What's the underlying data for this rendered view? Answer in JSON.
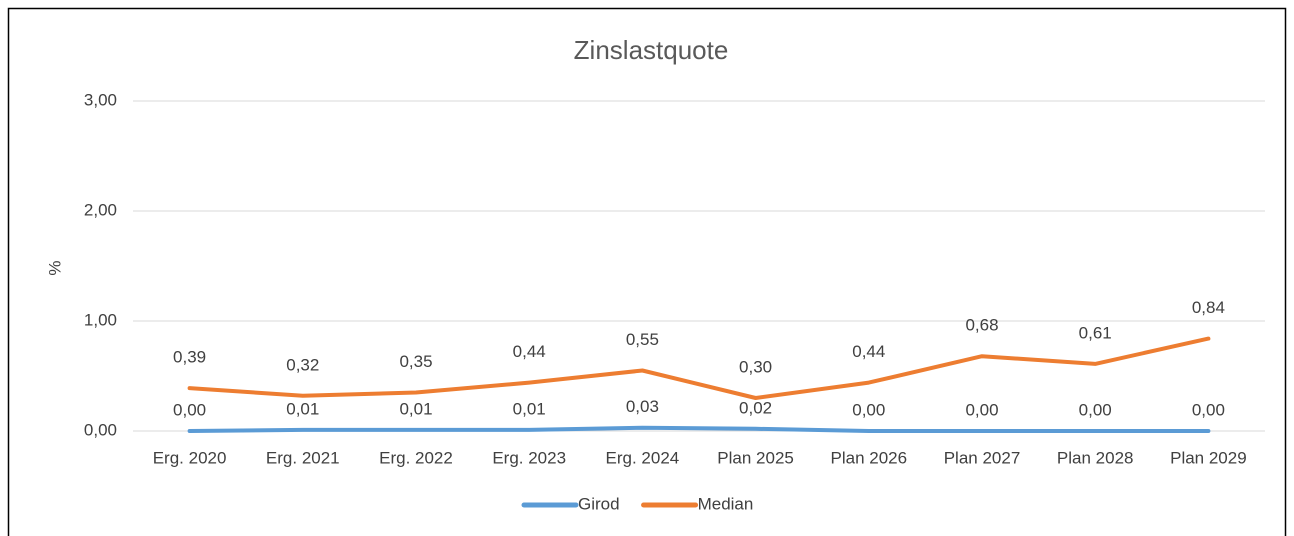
{
  "chart_data": {
    "type": "line",
    "title": "Zinslastquote",
    "y_label": "%",
    "categories": [
      "Erg. 2020",
      "Erg. 2021",
      "Erg. 2022",
      "Erg. 2023",
      "Erg. 2024",
      "Plan 2025",
      "Plan 2026",
      "Plan 2027",
      "Plan 2028",
      "Plan 2029"
    ],
    "series": [
      {
        "name": "Girod",
        "color": "#5b9bd5",
        "values": [
          0,
          0.01,
          0.01,
          0.01,
          0.03,
          0.02,
          0,
          0,
          0,
          0
        ],
        "value_labels": [
          "0,00",
          "0,01",
          "0,01",
          "0,01",
          "0,03",
          "0,02",
          "0,00",
          "0,00",
          "0,00",
          "0,00"
        ]
      },
      {
        "name": "Median",
        "color": "#ed7d31",
        "values": [
          0.39,
          0.32,
          0.35,
          0.44,
          0.55,
          0.3,
          0.44,
          0.68,
          0.61,
          0.84
        ],
        "value_labels": [
          "0,39",
          "0,32",
          "0,35",
          "0,44",
          "0,55",
          "0,30",
          "0,44",
          "0,68",
          "0,61",
          "0,84"
        ]
      }
    ],
    "ylim": [
      0,
      3
    ],
    "yticks": [
      {
        "value": 0,
        "label": "0,00"
      },
      {
        "value": 1,
        "label": "1,00"
      },
      {
        "value": 2,
        "label": "2,00"
      },
      {
        "value": 3,
        "label": "3,00"
      }
    ],
    "grid": true,
    "legend": "bottom"
  }
}
